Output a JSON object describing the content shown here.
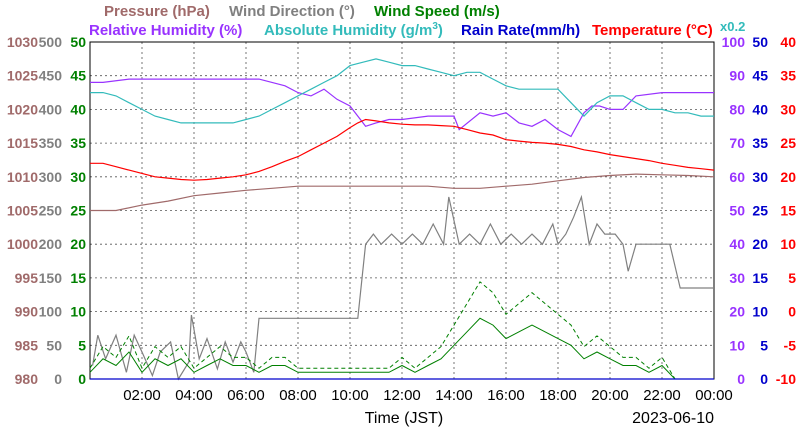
{
  "chart_data": {
    "type": "line",
    "date": "2023-06-10",
    "xlabel": "Time (JST)",
    "x_ticks": [
      "02:00",
      "04:00",
      "06:00",
      "08:00",
      "10:00",
      "12:00",
      "14:00",
      "16:00",
      "18:00",
      "20:00",
      "22:00",
      "00:00"
    ],
    "xlim_hours": [
      0,
      24
    ],
    "grid": true,
    "legend": {
      "row1": [
        {
          "text": "Pressure (hPa)",
          "color": "#a06a6a"
        },
        {
          "text": "Wind Direction (°)",
          "color": "#808080"
        },
        {
          "text": "Wind Speed (m/s)",
          "color": "#008000"
        }
      ],
      "row2": [
        {
          "text": "Relative Humidity (%)",
          "color": "#9933ff"
        },
        {
          "text": "Absolute Humidity (g/m³)",
          "color": "#33bbbb"
        },
        {
          "text": "Rain Rate(mm/h)",
          "color": "#0000cc"
        },
        {
          "text": "Temperature (°C)",
          "color": "#ff0000"
        }
      ],
      "rain_scale": "x0.2",
      "rain_scale_color": "#33bbbb"
    },
    "axes": {
      "pressure": {
        "color": "#a06a6a",
        "ticks": [
          "980",
          "985",
          "990",
          "995",
          "1000",
          "1005",
          "1010",
          "1015",
          "1020",
          "1025",
          "1030"
        ],
        "range": [
          980,
          1030
        ]
      },
      "wind_direction": {
        "color": "#808080",
        "ticks": [
          "0",
          "50",
          "100",
          "150",
          "200",
          "250",
          "300",
          "350",
          "400",
          "450",
          "500"
        ],
        "range": [
          0,
          500
        ]
      },
      "wind_speed": {
        "color": "#008000",
        "ticks": [
          "0",
          "5",
          "10",
          "15",
          "20",
          "25",
          "30",
          "35",
          "40",
          "45",
          "50"
        ],
        "range": [
          0,
          50
        ]
      },
      "humidity": {
        "color": "#9933ff",
        "ticks": [
          "0",
          "10",
          "20",
          "30",
          "40",
          "50",
          "60",
          "70",
          "80",
          "90",
          "100"
        ],
        "range": [
          0,
          100
        ]
      },
      "rain_rate": {
        "color": "#0000cc",
        "ticks": [
          "0",
          "5",
          "10",
          "15",
          "20",
          "25",
          "30",
          "35",
          "40",
          "45",
          "50"
        ],
        "range": [
          0,
          50
        ]
      },
      "temperature": {
        "color": "#ff0000",
        "ticks": [
          "-10",
          "-5",
          "0",
          "5",
          "10",
          "15",
          "20",
          "25",
          "30",
          "35",
          "40"
        ],
        "range": [
          -10,
          40
        ]
      }
    },
    "series": [
      {
        "name": "Pressure (hPa)",
        "color": "#a06a6a",
        "axis": "pressure",
        "x": [
          0,
          1,
          2,
          3,
          4,
          5,
          6,
          7,
          8,
          9,
          10,
          11,
          12,
          13,
          14,
          15,
          16,
          17,
          18,
          19,
          20,
          21,
          22,
          23,
          24
        ],
        "y": [
          1005,
          1005,
          1005.8,
          1006.4,
          1007.2,
          1007.6,
          1008,
          1008.3,
          1008.6,
          1008.6,
          1008.6,
          1008.6,
          1008.6,
          1008.6,
          1008.3,
          1008.3,
          1008.6,
          1008.9,
          1009.4,
          1009.9,
          1010.2,
          1010.4,
          1010.3,
          1010.2,
          1010
        ]
      },
      {
        "name": "Wind Direction (°)",
        "color": "#808080",
        "axis": "wind_direction",
        "x": [
          0.1,
          0.3,
          0.6,
          1.0,
          1.4,
          1.7,
          2.0,
          2.4,
          2.7,
          3.1,
          3.4,
          3.8,
          3.9,
          4.2,
          4.5,
          4.9,
          5.2,
          5.5,
          5.8,
          6.0,
          6.3,
          6.5,
          8,
          10,
          10.3,
          10.6,
          10.9,
          11.2,
          11.6,
          12,
          12.4,
          12.8,
          13.2,
          13.6,
          13.8,
          14.2,
          14.6,
          15.0,
          15.4,
          15.8,
          16.2,
          16.6,
          17.0,
          17.4,
          17.8,
          18.0,
          18.3,
          18.6,
          18.9,
          19.2,
          19.5,
          19.8,
          20.2,
          20.5,
          20.7,
          21.0,
          21.5,
          22,
          22.3,
          22.7,
          23,
          23.5,
          24
        ],
        "y": [
          20,
          65,
          30,
          65,
          10,
          65,
          40,
          5,
          40,
          55,
          0,
          25,
          95,
          30,
          60,
          15,
          55,
          25,
          55,
          40,
          10,
          90,
          90,
          90,
          90,
          200,
          215,
          200,
          215,
          200,
          215,
          200,
          230,
          200,
          270,
          200,
          215,
          200,
          230,
          200,
          215,
          200,
          215,
          200,
          230,
          200,
          215,
          240,
          270,
          200,
          230,
          215,
          215,
          200,
          160,
          200,
          200,
          200,
          200,
          135,
          135,
          135,
          135
        ]
      },
      {
        "name": "Wind Speed (m/s)",
        "color": "#008000",
        "axis": "wind_speed",
        "x": [
          0,
          0.5,
          1,
          1.5,
          2,
          2.5,
          3,
          3.5,
          4,
          4.5,
          5,
          5.5,
          6,
          6.5,
          7,
          7.5,
          8,
          8.5,
          9,
          9.5,
          10,
          10.5,
          11,
          11.5,
          12,
          12.5,
          13,
          13.5,
          14,
          14.5,
          15,
          15.5,
          16,
          16.5,
          17,
          17.5,
          18,
          18.5,
          19,
          19.5,
          20,
          20.5,
          21,
          21.5,
          22,
          22.5,
          23,
          23.5,
          24
        ],
        "y": [
          1,
          3,
          2,
          4,
          1,
          3,
          2,
          3,
          1,
          2,
          3,
          2,
          2,
          1,
          2,
          2,
          1,
          1,
          1,
          1,
          1,
          1,
          1,
          1,
          2,
          1,
          2,
          3,
          5,
          7,
          9,
          8,
          6,
          7,
          8,
          7,
          6,
          5,
          3,
          4,
          3,
          2,
          2,
          1,
          2,
          0,
          0,
          0,
          0
        ]
      },
      {
        "name": "Relative Humidity (%)",
        "color": "#9933ff",
        "axis": "humidity",
        "x": [
          0,
          0.5,
          1.5,
          2.0,
          3,
          4,
          5,
          6,
          6.5,
          7,
          7.5,
          8,
          8.5,
          9,
          9.5,
          10,
          10.3,
          10.6,
          11,
          11.5,
          12,
          13,
          14,
          14.2,
          15,
          15.5,
          16,
          16.5,
          17,
          17.5,
          18,
          18.5,
          19,
          19.3,
          19.6,
          20,
          20.5,
          21,
          22,
          23,
          24
        ],
        "y": [
          88,
          88,
          89,
          89,
          89,
          89,
          89,
          89,
          89,
          88,
          87,
          85,
          84,
          86,
          83,
          81,
          78,
          75,
          76,
          77,
          77,
          78,
          78,
          74,
          79,
          78,
          79,
          76,
          75,
          77,
          74,
          72,
          79,
          81,
          81,
          80,
          80,
          84,
          85,
          85,
          85
        ]
      },
      {
        "name": "Absolute Humidity (g/m³)",
        "color": "#33bbbb",
        "axis": "humidity",
        "x": [
          0,
          0.5,
          1,
          1.5,
          2,
          2.5,
          3,
          3.5,
          4,
          4.5,
          5,
          5.5,
          6,
          6.5,
          7,
          7.5,
          8,
          8.5,
          9,
          9.5,
          10,
          10.5,
          11,
          11.5,
          12,
          12.5,
          13,
          13.5,
          14,
          14.5,
          15,
          15.5,
          16,
          16.5,
          17,
          17.5,
          18,
          18.5,
          19,
          19.5,
          20,
          20.5,
          21,
          21.5,
          22,
          22.5,
          23,
          23.5,
          24
        ],
        "y": [
          85,
          85,
          84,
          82,
          80,
          78,
          77,
          76,
          76,
          76,
          76,
          76,
          77,
          78,
          80,
          82,
          84,
          86,
          88,
          90,
          93,
          94,
          95,
          94,
          93,
          93,
          92,
          91,
          90,
          91,
          91,
          89,
          87,
          86,
          86,
          86,
          86,
          82,
          78,
          82,
          84,
          84,
          82,
          80,
          80,
          79,
          79,
          78,
          78
        ]
      },
      {
        "name": "Temperature (°C)",
        "color": "#ff0000",
        "axis": "temperature",
        "x": [
          0,
          0.5,
          1,
          1.5,
          2,
          2.5,
          3,
          3.5,
          4,
          4.5,
          5,
          5.5,
          6,
          6.5,
          7,
          7.5,
          8,
          8.5,
          9,
          9.5,
          10,
          10.3,
          10.6,
          11,
          11.5,
          12,
          12.5,
          13,
          13.5,
          14,
          14.5,
          15,
          15.5,
          16,
          16.5,
          17,
          17.5,
          18,
          18.5,
          19,
          19.5,
          20,
          20.5,
          21,
          21.5,
          22,
          22.5,
          23,
          23.5,
          24
        ],
        "y": [
          22,
          22,
          21.5,
          21,
          20.5,
          20,
          19.8,
          19.6,
          19.5,
          19.6,
          19.8,
          20,
          20.3,
          20.8,
          21.5,
          22.3,
          23,
          24,
          25,
          26,
          27.3,
          28,
          28.5,
          28.3,
          28,
          27.8,
          27.7,
          27.7,
          27.6,
          27.5,
          27,
          26.5,
          26.2,
          25.5,
          25.3,
          25.1,
          25,
          24.8,
          24.5,
          24,
          23.7,
          23.3,
          23,
          22.7,
          22.4,
          22,
          21.7,
          21.4,
          21.2,
          21
        ]
      },
      {
        "name": "Rain Rate(mm/h)",
        "color": "#0000cc",
        "axis": "rain_rate",
        "x": [
          0,
          24
        ],
        "y": [
          0,
          0
        ]
      }
    ]
  }
}
